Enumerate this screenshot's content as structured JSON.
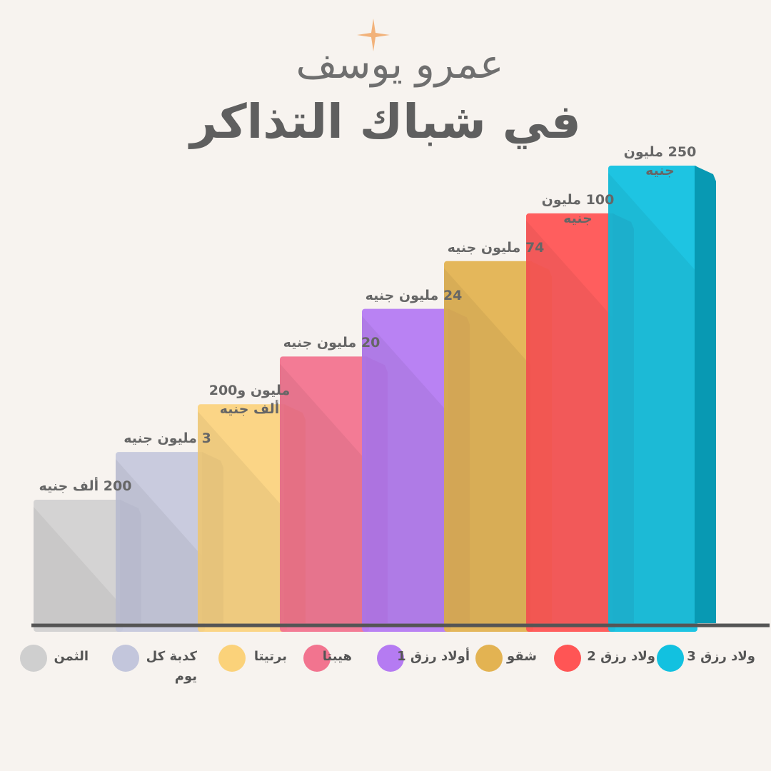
{
  "header": {
    "title_line1": "عمرو يوسف",
    "title_line2": "في شباك التذاكر"
  },
  "colors": {
    "background": "#f7f3ef",
    "baseline": "#555555",
    "sparkle": "#f2b27a"
  },
  "chart_data": {
    "type": "bar",
    "title": "",
    "categories": [
      "الثمن",
      "كدبة كل يوم",
      "برتيتا",
      "هيبتا",
      "أولاد رزق 1",
      "شقو",
      "ولاد رزق 2",
      "ولاد رزق 3"
    ],
    "values": [
      0.2,
      3,
      1.2,
      20,
      24,
      74,
      100,
      250
    ],
    "value_labels": [
      "200 ألف جنيه",
      "3 مليون جنيه",
      "مليون و200 ألف جنيه",
      "20 مليون جنيه",
      "24 مليون جنيه",
      "74 مليون جنيه",
      "100 مليون جنيه",
      "250 مليون جنيه"
    ],
    "unit": "مليون جنيه",
    "bar_colors": [
      "#cfcfcf",
      "#c3c6dc",
      "#fbd27a",
      "#f2748f",
      "#b57bf2",
      "#e3b352",
      "#ff5555",
      "#12c1e0"
    ],
    "side_colors": [
      "#b3b3b3",
      "#a9abc8",
      "#e8b44d",
      "#d85e7d",
      "#9b66dc",
      "#fdd17a",
      "#ff3030",
      "#0899b3"
    ],
    "legend_position": "bottom",
    "grid": false,
    "note": "Heights are stepped (rank order), not proportional to values"
  }
}
